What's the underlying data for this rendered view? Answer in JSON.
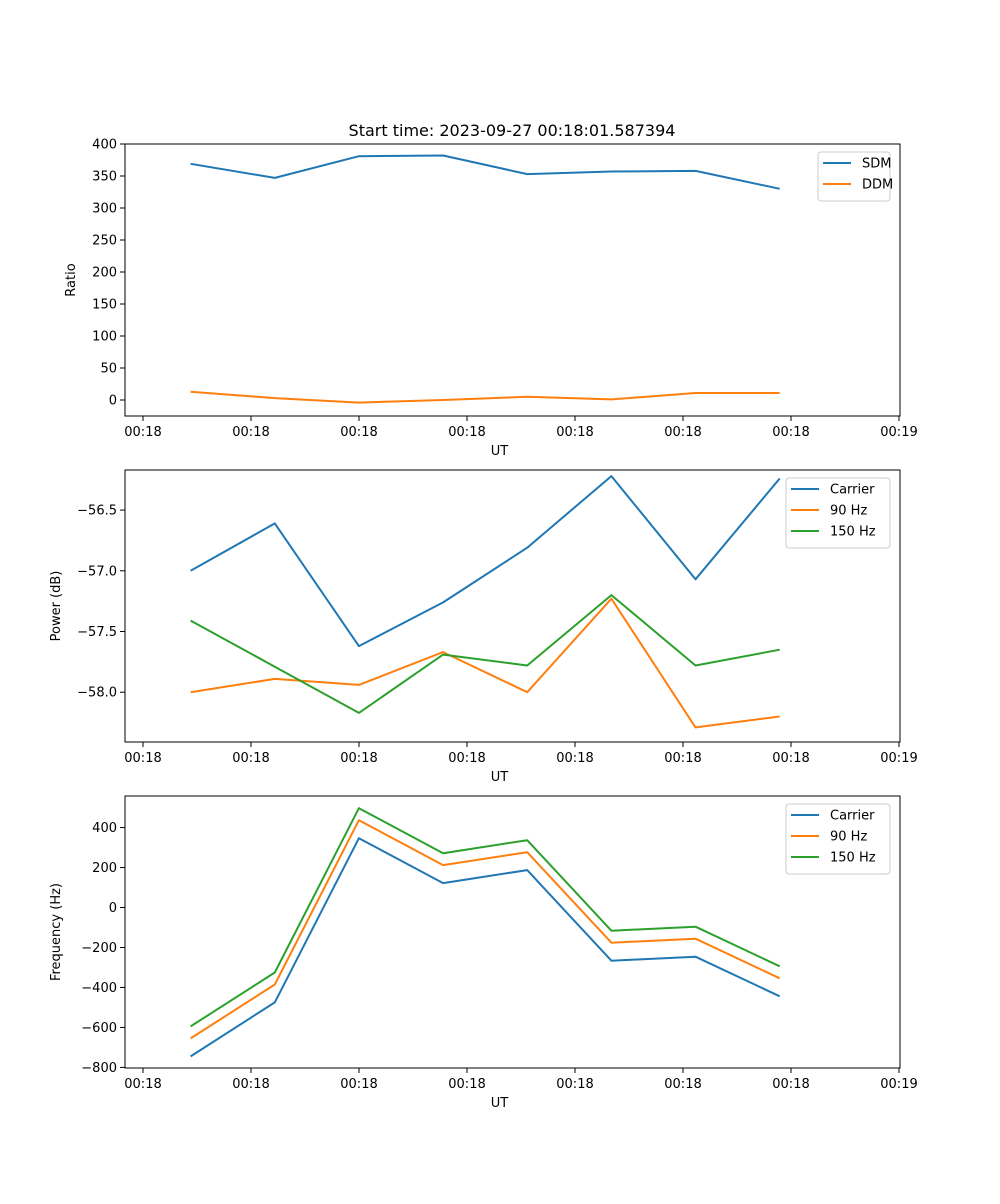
{
  "figure_title": "Start time: 2023-09-27 00:18:01.587394",
  "colors": {
    "c0": "#1f77b4",
    "c1": "#ff7f0e",
    "c2": "#2ca02c"
  },
  "chart_data": [
    {
      "type": "line",
      "title": "Start time: 2023-09-27 00:18:01.587394",
      "xlabel": "UT",
      "ylabel": "Ratio",
      "x_ticks": [
        "00:18",
        "00:18",
        "00:18",
        "00:18",
        "00:18",
        "00:18",
        "00:18"
      ],
      "x_last_tick": "00:19",
      "x": [
        1,
        2,
        3,
        4,
        5,
        6,
        7,
        8
      ],
      "xlim": [
        0.22,
        9.43
      ],
      "ylim": [
        -25,
        400
      ],
      "y_ticks": [
        0,
        50,
        100,
        150,
        200,
        250,
        300,
        350,
        400
      ],
      "y_tick_labels": [
        "0",
        "50",
        "100",
        "150",
        "200",
        "250",
        "300",
        "350",
        "400"
      ],
      "legend": "top-right",
      "series": [
        {
          "name": "SDM",
          "color": "#1f77b4",
          "values": [
            369,
            347,
            381,
            382,
            353,
            357,
            358,
            330
          ]
        },
        {
          "name": "DDM",
          "color": "#ff7f0e",
          "values": [
            13,
            3,
            -4,
            0,
            5,
            1,
            11,
            11
          ]
        }
      ]
    },
    {
      "type": "line",
      "xlabel": "UT",
      "ylabel": "Power (dB)",
      "x_ticks": [
        "00:18",
        "00:18",
        "00:18",
        "00:18",
        "00:18",
        "00:18",
        "00:18"
      ],
      "x_last_tick": "00:19",
      "x": [
        1,
        2,
        3,
        4,
        5,
        6,
        7,
        8
      ],
      "xlim": [
        0.22,
        9.43
      ],
      "ylim": [
        -58.41,
        -56.17
      ],
      "y_ticks": [
        -58.0,
        -57.5,
        -57.0,
        -56.5
      ],
      "y_tick_labels": [
        "−58.0",
        "−57.5",
        "−57.0",
        "−56.5"
      ],
      "legend": "top-right",
      "series": [
        {
          "name": "Carrier",
          "color": "#1f77b4",
          "values": [
            -57.0,
            -56.61,
            -57.62,
            -57.26,
            -56.81,
            -56.22,
            -57.07,
            -56.24
          ]
        },
        {
          "name": "90 Hz",
          "color": "#ff7f0e",
          "values": [
            -58.0,
            -57.89,
            -57.94,
            -57.67,
            -58.0,
            -57.23,
            -58.29,
            -58.2
          ]
        },
        {
          "name": "150 Hz",
          "color": "#2ca02c",
          "values": [
            -57.41,
            -57.79,
            -58.17,
            -57.69,
            -57.78,
            -57.2,
            -57.78,
            -57.65
          ]
        }
      ]
    },
    {
      "type": "line",
      "xlabel": "UT",
      "ylabel": "Frequency (Hz)",
      "x_ticks": [
        "00:18",
        "00:18",
        "00:18",
        "00:18",
        "00:18",
        "00:18",
        "00:18"
      ],
      "x_last_tick": "00:19",
      "x": [
        1,
        2,
        3,
        4,
        5,
        6,
        7,
        8
      ],
      "xlim": [
        0.22,
        9.43
      ],
      "ylim": [
        -803,
        558
      ],
      "y_ticks": [
        -800,
        -600,
        -400,
        -200,
        0,
        200,
        400
      ],
      "y_tick_labels": [
        "−800",
        "−600",
        "−400",
        "−200",
        "0",
        "200",
        "400"
      ],
      "legend": "top-right",
      "series": [
        {
          "name": "Carrier",
          "color": "#1f77b4",
          "values": [
            -745,
            -475,
            347,
            122,
            187,
            -266,
            -246,
            -444
          ]
        },
        {
          "name": "90 Hz",
          "color": "#ff7f0e",
          "values": [
            -655,
            -385,
            437,
            212,
            277,
            -176,
            -156,
            -354
          ]
        },
        {
          "name": "150 Hz",
          "color": "#2ca02c",
          "values": [
            -595,
            -325,
            497,
            272,
            337,
            -116,
            -96,
            -294
          ]
        }
      ]
    }
  ]
}
